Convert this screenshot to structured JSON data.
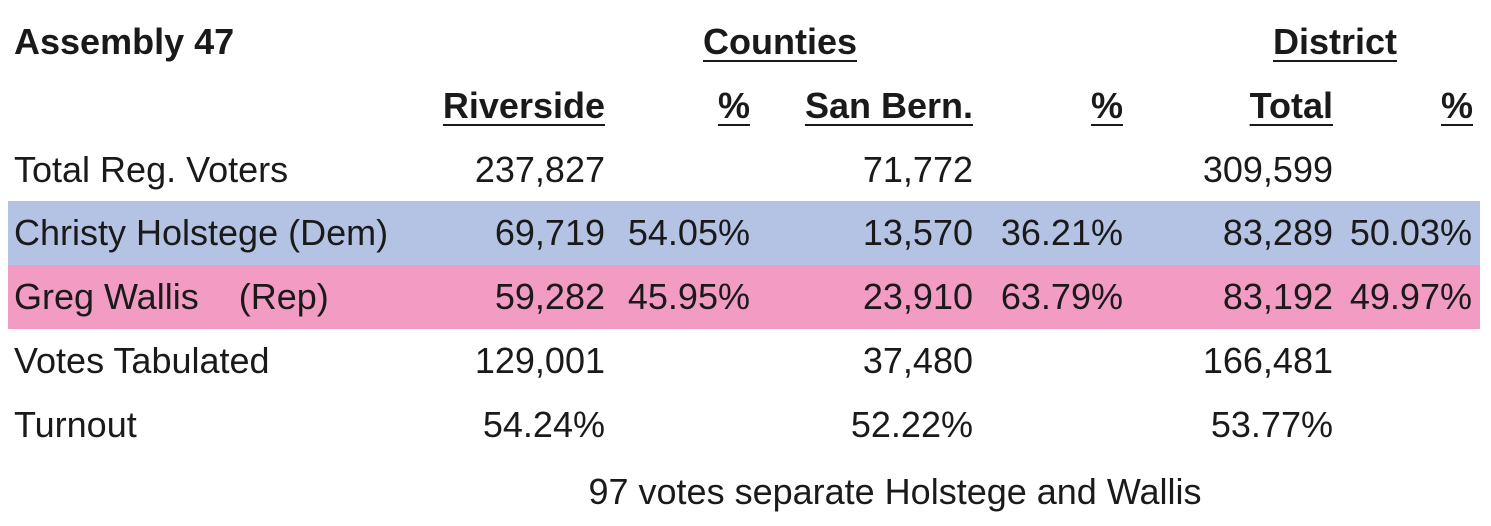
{
  "header": {
    "title": "Assembly 47",
    "counties_label": "Counties",
    "district_label": "District"
  },
  "columns": [
    "Riverside",
    "%",
    "San Bern.",
    "%",
    "Total",
    "%"
  ],
  "rows": [
    {
      "label": "Total Reg. Voters",
      "riverside": "237,827",
      "riverside_pct": "",
      "sanbern": "71,772",
      "sanbern_pct": "",
      "total": "309,599",
      "total_pct": ""
    },
    {
      "label": "Christy Holstege  (Dem)",
      "riverside": "69,719",
      "riverside_pct": "54.05%",
      "sanbern": "13,570",
      "sanbern_pct": "36.21%",
      "total": "83,289",
      "total_pct": "50.03%",
      "highlight": "#b4c3e4"
    },
    {
      "label": "Greg Wallis    (Rep)",
      "riverside": "59,282",
      "riverside_pct": "45.95%",
      "sanbern": "23,910",
      "sanbern_pct": "63.79%",
      "total": "83,192",
      "total_pct": "49.97%",
      "highlight": "#f29bc3"
    },
    {
      "label": "Votes Tabulated",
      "riverside": "129,001",
      "riverside_pct": "",
      "sanbern": "37,480",
      "sanbern_pct": "",
      "total": "166,481",
      "total_pct": ""
    },
    {
      "label": "Turnout",
      "riverside": "54.24%",
      "riverside_pct": "",
      "sanbern": "52.22%",
      "sanbern_pct": "",
      "total": "53.77%",
      "total_pct": ""
    }
  ],
  "note": "97 votes separate Holstege and Wallis"
}
